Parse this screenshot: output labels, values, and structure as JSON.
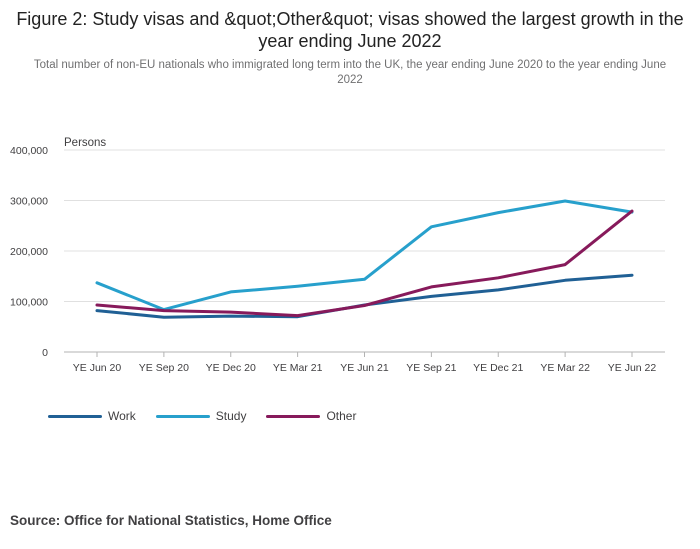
{
  "title": "Figure 2: Study visas and &quot;Other&quot; visas showed the largest growth in the year ending June 2022",
  "subtitle": "Total number of non-EU nationals who immigrated long term into the UK, the year ending June 2020 to the year ending June 2022",
  "source": "Source: Office for National Statistics, Home Office",
  "chart_data": {
    "type": "line",
    "title": "Figure 2: Study visas and &quot;Other&quot; visas showed the largest growth in the year ending June 2022",
    "subtitle": "Total number of non-EU nationals who immigrated long term into the UK, the year ending June 2020 to the year ending June 2022",
    "ylabel": "Persons",
    "ylim": [
      0,
      400000
    ],
    "yticks": [
      0,
      100000,
      200000,
      300000,
      400000
    ],
    "ytick_labels": [
      "0",
      "100,000",
      "200,000",
      "300,000",
      "400,000"
    ],
    "grid": true,
    "legend_position": "bottom-left",
    "categories": [
      "YE Jun 20",
      "YE Sep 20",
      "YE Dec 20",
      "YE Mar 21",
      "YE Jun 21",
      "YE Sep 21",
      "YE Dec 21",
      "YE Mar 22",
      "YE Jun 22"
    ],
    "series": [
      {
        "name": "Work",
        "color": "#206095",
        "values": [
          82000,
          69000,
          71000,
          70000,
          93000,
          110000,
          123000,
          142000,
          152000
        ]
      },
      {
        "name": "Study",
        "color": "#27a0cc",
        "values": [
          137000,
          84000,
          119000,
          130000,
          144000,
          248000,
          276000,
          299000,
          277000
        ]
      },
      {
        "name": "Other",
        "color": "#871a5b",
        "values": [
          93000,
          82000,
          79000,
          72000,
          92000,
          129000,
          147000,
          173000,
          279000
        ]
      }
    ]
  }
}
